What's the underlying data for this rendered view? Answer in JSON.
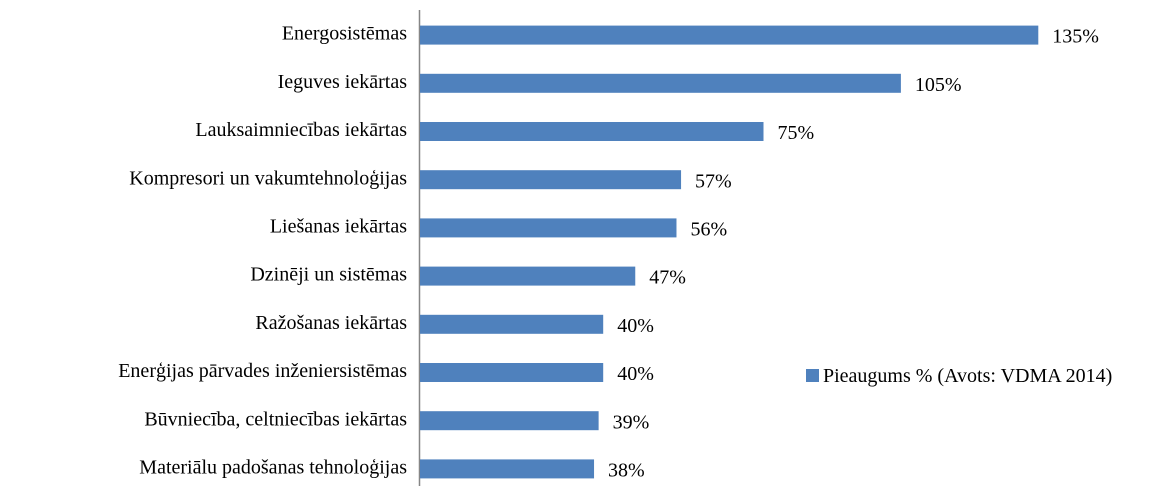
{
  "chart_data": {
    "type": "bar",
    "orientation": "horizontal",
    "categories": [
      "Energosistēmas",
      "Ieguves iekārtas",
      "Lauksaimniecības iekārtas",
      "Kompresori un vakumtehnoloģijas",
      "Liešanas iekārtas",
      "Dzinēji un sistēmas",
      "Ražošanas iekārtas",
      "Enerģijas pārvades inženiersistēmas",
      "Būvniecība, celtniecības iekārtas",
      "Materiālu padošanas tehnoloģijas"
    ],
    "series": [
      {
        "name": "Pieaugums % (Avots: VDMA 2014)",
        "color": "#4f81bd",
        "values": [
          135,
          105,
          75,
          57,
          56,
          47,
          40,
          40,
          39,
          38
        ],
        "value_labels": [
          "135%",
          "105%",
          "75%",
          "57%",
          "56%",
          "47%",
          "40%",
          "40%",
          "39%",
          "38%"
        ]
      }
    ],
    "xlim": [
      0,
      150
    ],
    "legend": "right"
  }
}
